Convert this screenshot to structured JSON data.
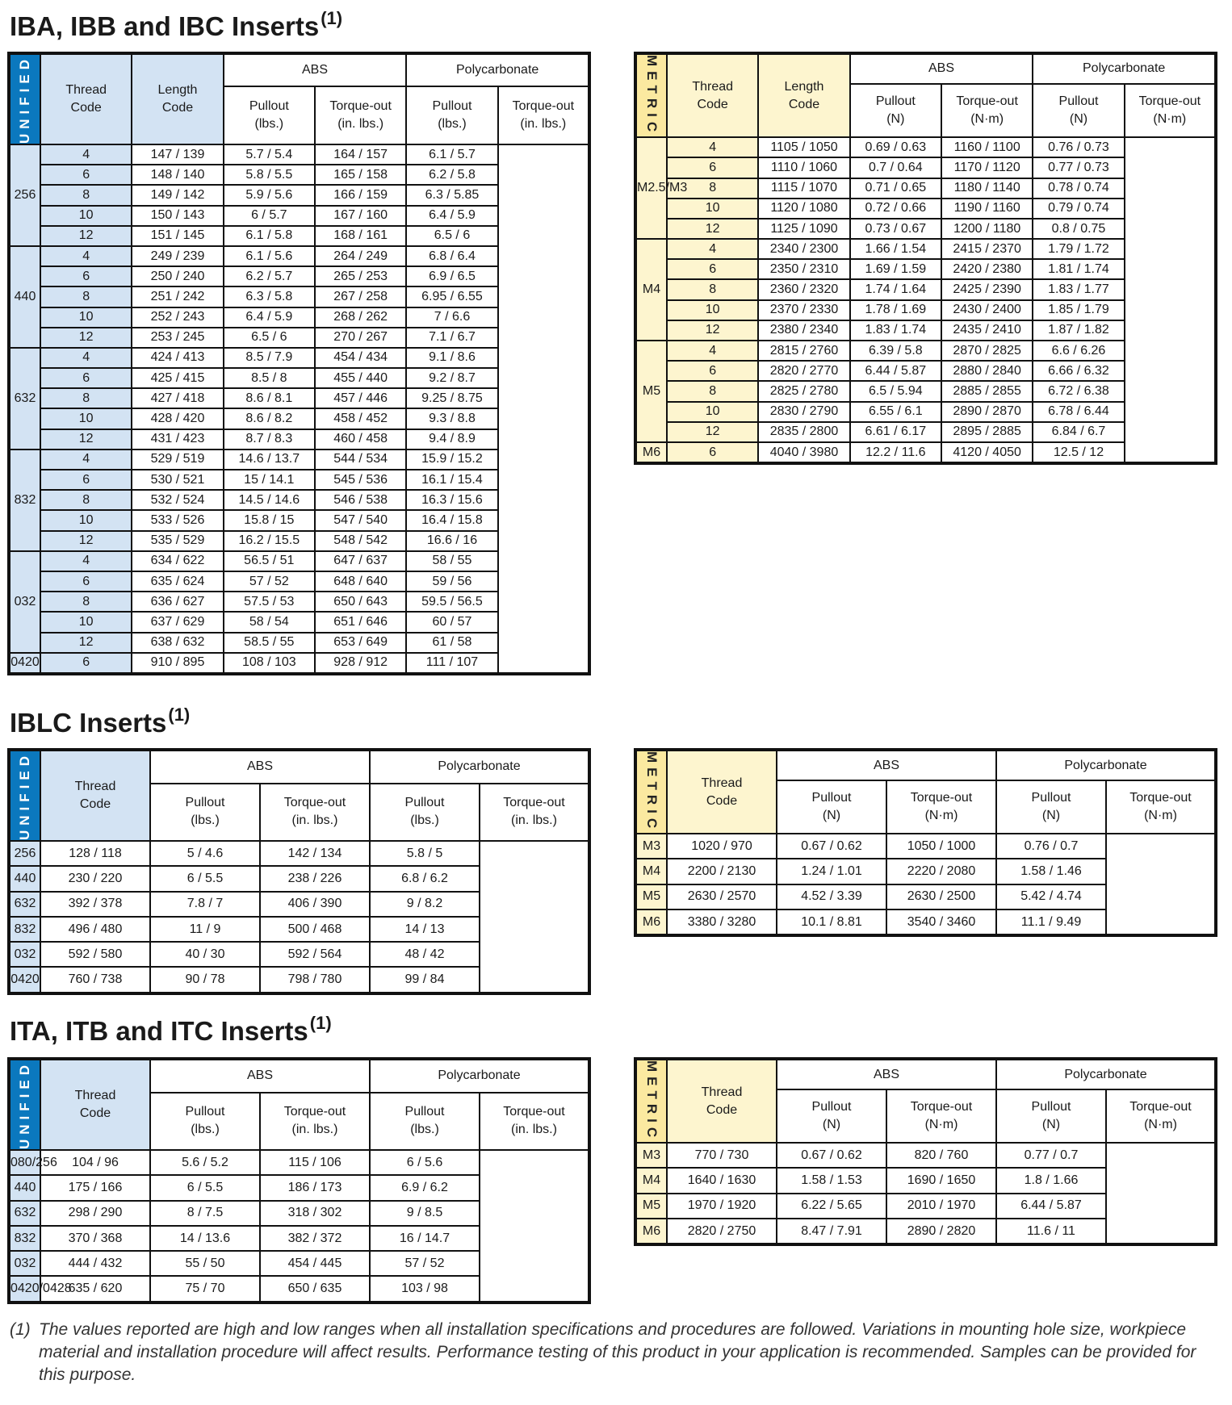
{
  "sections": [
    {
      "title": "IBA, IBB and IBC Inserts",
      "note": "(1)",
      "tables": [
        {
          "side": "UNIFIED",
          "lead": [
            "Thread\nCode",
            "Length\nCode"
          ],
          "groups_header": [
            "ABS",
            "Polycarbonate"
          ],
          "cols": [
            "Pullout\n(lbs.)",
            "Torque-out\n(in. lbs.)",
            "Pullout\n(lbs.)",
            "Torque-out\n(in. lbs.)"
          ],
          "groups": [
            {
              "code": "256",
              "rows": [
                [
                  "4",
                  "147 / 139",
                  "5.7 / 5.4",
                  "164 / 157",
                  "6.1 / 5.7"
                ],
                [
                  "6",
                  "148 / 140",
                  "5.8 / 5.5",
                  "165 / 158",
                  "6.2 / 5.8"
                ],
                [
                  "8",
                  "149 / 142",
                  "5.9 / 5.6",
                  "166 / 159",
                  "6.3 / 5.85"
                ],
                [
                  "10",
                  "150 / 143",
                  "6 / 5.7",
                  "167 / 160",
                  "6.4 / 5.9"
                ],
                [
                  "12",
                  "151 / 145",
                  "6.1 / 5.8",
                  "168 / 161",
                  "6.5 / 6"
                ]
              ]
            },
            {
              "code": "440",
              "rows": [
                [
                  "4",
                  "249 / 239",
                  "6.1 / 5.6",
                  "264 / 249",
                  "6.8 / 6.4"
                ],
                [
                  "6",
                  "250 / 240",
                  "6.2 / 5.7",
                  "265 / 253",
                  "6.9 / 6.5"
                ],
                [
                  "8",
                  "251 / 242",
                  "6.3 / 5.8",
                  "267 / 258",
                  "6.95 / 6.55"
                ],
                [
                  "10",
                  "252 / 243",
                  "6.4 / 5.9",
                  "268 / 262",
                  "7 / 6.6"
                ],
                [
                  "12",
                  "253 / 245",
                  "6.5 / 6",
                  "270 / 267",
                  "7.1 / 6.7"
                ]
              ]
            },
            {
              "code": "632",
              "rows": [
                [
                  "4",
                  "424 / 413",
                  "8.5 / 7.9",
                  "454 / 434",
                  "9.1 / 8.6"
                ],
                [
                  "6",
                  "425 / 415",
                  "8.5 / 8",
                  "455 / 440",
                  "9.2 / 8.7"
                ],
                [
                  "8",
                  "427 / 418",
                  "8.6 / 8.1",
                  "457 / 446",
                  "9.25 / 8.75"
                ],
                [
                  "10",
                  "428 / 420",
                  "8.6 / 8.2",
                  "458 / 452",
                  "9.3 / 8.8"
                ],
                [
                  "12",
                  "431 / 423",
                  "8.7 / 8.3",
                  "460 / 458",
                  "9.4 / 8.9"
                ]
              ]
            },
            {
              "code": "832",
              "rows": [
                [
                  "4",
                  "529 / 519",
                  "14.6 / 13.7",
                  "544 / 534",
                  "15.9 / 15.2"
                ],
                [
                  "6",
                  "530 / 521",
                  "15 / 14.1",
                  "545 / 536",
                  "16.1 / 15.4"
                ],
                [
                  "8",
                  "532 / 524",
                  "14.5 / 14.6",
                  "546 / 538",
                  "16.3 / 15.6"
                ],
                [
                  "10",
                  "533 / 526",
                  "15.8 / 15",
                  "547 / 540",
                  "16.4 / 15.8"
                ],
                [
                  "12",
                  "535 / 529",
                  "16.2 / 15.5",
                  "548 / 542",
                  "16.6 / 16"
                ]
              ]
            },
            {
              "code": "032",
              "rows": [
                [
                  "4",
                  "634 / 622",
                  "56.5 / 51",
                  "647 / 637",
                  "58 / 55"
                ],
                [
                  "6",
                  "635 / 624",
                  "57 / 52",
                  "648 / 640",
                  "59 / 56"
                ],
                [
                  "8",
                  "636 / 627",
                  "57.5 / 53",
                  "650 / 643",
                  "59.5 / 56.5"
                ],
                [
                  "10",
                  "637 / 629",
                  "58 / 54",
                  "651 / 646",
                  "60 / 57"
                ],
                [
                  "12",
                  "638 / 632",
                  "58.5 / 55",
                  "653 / 649",
                  "61 / 58"
                ]
              ]
            },
            {
              "code": "0420",
              "rows": [
                [
                  "6",
                  "910 / 895",
                  "108 / 103",
                  "928 / 912",
                  "111 / 107"
                ]
              ]
            }
          ]
        },
        {
          "side": "METRIC",
          "lead": [
            "Thread\nCode",
            "Length\nCode"
          ],
          "groups_header": [
            "ABS",
            "Polycarbonate"
          ],
          "cols": [
            "Pullout\n(N)",
            "Torque-out\n(N·m)",
            "Pullout\n(N)",
            "Torque-out\n(N·m)"
          ],
          "groups": [
            {
              "code": "M2.5/M3",
              "rows": [
                [
                  "4",
                  "1105 / 1050",
                  "0.69 / 0.63",
                  "1160 / 1100",
                  "0.76 / 0.73"
                ],
                [
                  "6",
                  "1110 / 1060",
                  "0.7 / 0.64",
                  "1170 / 1120",
                  "0.77 / 0.73"
                ],
                [
                  "8",
                  "1115 / 1070",
                  "0.71 / 0.65",
                  "1180 / 1140",
                  "0.78 / 0.74"
                ],
                [
                  "10",
                  "1120 / 1080",
                  "0.72 / 0.66",
                  "1190 / 1160",
                  "0.79 / 0.74"
                ],
                [
                  "12",
                  "1125 / 1090",
                  "0.73 / 0.67",
                  "1200 / 1180",
                  "0.8 / 0.75"
                ]
              ]
            },
            {
              "code": "M4",
              "rows": [
                [
                  "4",
                  "2340 / 2300",
                  "1.66 / 1.54",
                  "2415 / 2370",
                  "1.79 / 1.72"
                ],
                [
                  "6",
                  "2350 / 2310",
                  "1.69 / 1.59",
                  "2420 / 2380",
                  "1.81 / 1.74"
                ],
                [
                  "8",
                  "2360 / 2320",
                  "1.74 / 1.64",
                  "2425 / 2390",
                  "1.83 / 1.77"
                ],
                [
                  "10",
                  "2370 / 2330",
                  "1.78 / 1.69",
                  "2430 / 2400",
                  "1.85 / 1.79"
                ],
                [
                  "12",
                  "2380 / 2340",
                  "1.83 / 1.74",
                  "2435 / 2410",
                  "1.87 / 1.82"
                ]
              ]
            },
            {
              "code": "M5",
              "rows": [
                [
                  "4",
                  "2815 / 2760",
                  "6.39 / 5.8",
                  "2870 / 2825",
                  "6.6 / 6.26"
                ],
                [
                  "6",
                  "2820 / 2770",
                  "6.44 / 5.87",
                  "2880 / 2840",
                  "6.66 / 6.32"
                ],
                [
                  "8",
                  "2825 / 2780",
                  "6.5 / 5.94",
                  "2885 / 2855",
                  "6.72 / 6.38"
                ],
                [
                  "10",
                  "2830 / 2790",
                  "6.55 / 6.1",
                  "2890 / 2870",
                  "6.78 / 6.44"
                ],
                [
                  "12",
                  "2835 / 2800",
                  "6.61 / 6.17",
                  "2895 / 2885",
                  "6.84 / 6.7"
                ]
              ]
            },
            {
              "code": "M6",
              "rows": [
                [
                  "6",
                  "4040 / 3980",
                  "12.2 / 11.6",
                  "4120 / 4050",
                  "12.5 / 12"
                ]
              ]
            }
          ]
        }
      ]
    },
    {
      "title": "IBLC Inserts",
      "note": "(1)",
      "tables": [
        {
          "side": "UNIFIED",
          "lead": [
            "Thread\nCode"
          ],
          "groups_header": [
            "ABS",
            "Polycarbonate"
          ],
          "cols": [
            "Pullout\n(lbs.)",
            "Torque-out\n(in. lbs.)",
            "Pullout\n(lbs.)",
            "Torque-out\n(in. lbs.)"
          ],
          "rows": [
            [
              "256",
              "128 / 118",
              "5 / 4.6",
              "142 / 134",
              "5.8 / 5"
            ],
            [
              "440",
              "230 / 220",
              "6 / 5.5",
              "238 / 226",
              "6.8 / 6.2"
            ],
            [
              "632",
              "392 / 378",
              "7.8 / 7",
              "406 / 390",
              "9 / 8.2"
            ],
            [
              "832",
              "496 / 480",
              "11 / 9",
              "500 / 468",
              "14 / 13"
            ],
            [
              "032",
              "592 / 580",
              "40 / 30",
              "592 / 564",
              "48 / 42"
            ],
            [
              "0420",
              "760 / 738",
              "90 / 78",
              "798 / 780",
              "99 / 84"
            ]
          ]
        },
        {
          "side": "METRIC",
          "lead": [
            "Thread\nCode"
          ],
          "groups_header": [
            "ABS",
            "Polycarbonate"
          ],
          "cols": [
            "Pullout\n(N)",
            "Torque-out\n(N·m)",
            "Pullout\n(N)",
            "Torque-out\n(N·m)"
          ],
          "rows": [
            [
              "M3",
              "1020 / 970",
              "0.67 / 0.62",
              "1050 / 1000",
              "0.76 / 0.7"
            ],
            [
              "M4",
              "2200 / 2130",
              "1.24 / 1.01",
              "2220 / 2080",
              "1.58 / 1.46"
            ],
            [
              "M5",
              "2630 / 2570",
              "4.52 / 3.39",
              "2630 / 2500",
              "5.42 / 4.74"
            ],
            [
              "M6",
              "3380 / 3280",
              "10.1 / 8.81",
              "3540 / 3460",
              "11.1 / 9.49"
            ]
          ]
        }
      ]
    },
    {
      "title": "ITA, ITB and ITC Inserts",
      "note": "(1)",
      "tables": [
        {
          "side": "UNIFIED",
          "lead": [
            "Thread\nCode"
          ],
          "groups_header": [
            "ABS",
            "Polycarbonate"
          ],
          "cols": [
            "Pullout\n(lbs.)",
            "Torque-out\n(in. lbs.)",
            "Pullout\n(lbs.)",
            "Torque-out\n(in. lbs.)"
          ],
          "rows": [
            [
              "080/256",
              "104 / 96",
              "5.6 / 5.2",
              "115 / 106",
              "6 / 5.6"
            ],
            [
              "440",
              "175 / 166",
              "6 / 5.5",
              "186 / 173",
              "6.9 / 6.2"
            ],
            [
              "632",
              "298 / 290",
              "8 / 7.5",
              "318 / 302",
              "9 / 8.5"
            ],
            [
              "832",
              "370 / 368",
              "14 / 13.6",
              "382 / 372",
              "16 / 14.7"
            ],
            [
              "032",
              "444 / 432",
              "55 / 50",
              "454 / 445",
              "57 / 52"
            ],
            [
              "0420/0428",
              "635 / 620",
              "75 / 70",
              "650 / 635",
              "103 / 98"
            ]
          ]
        },
        {
          "side": "METRIC",
          "lead": [
            "Thread\nCode"
          ],
          "groups_header": [
            "ABS",
            "Polycarbonate"
          ],
          "cols": [
            "Pullout\n(N)",
            "Torque-out\n(N·m)",
            "Pullout\n(N)",
            "Torque-out\n(N·m)"
          ],
          "rows": [
            [
              "M3",
              "770 / 730",
              "0.67 / 0.62",
              "820 / 760",
              "0.77 / 0.7"
            ],
            [
              "M4",
              "1640 / 1630",
              "1.58 / 1.53",
              "1690 / 1650",
              "1.8 / 1.66"
            ],
            [
              "M5",
              "1970 / 1920",
              "6.22 / 5.65",
              "2010 / 1970",
              "6.44 / 5.87"
            ],
            [
              "M6",
              "2820 / 2750",
              "8.47 / 7.91",
              "2890 / 2820",
              "11.6 / 11"
            ]
          ]
        }
      ]
    }
  ],
  "footnote": {
    "marker": "(1)",
    "text": "The values reported are high and low ranges when all installation specifications and procedures are followed. Variations in mounting hole size, workpiece material and installation procedure will affect results. Performance testing of this product in your application is recommended. Samples can be provided for this purpose."
  }
}
